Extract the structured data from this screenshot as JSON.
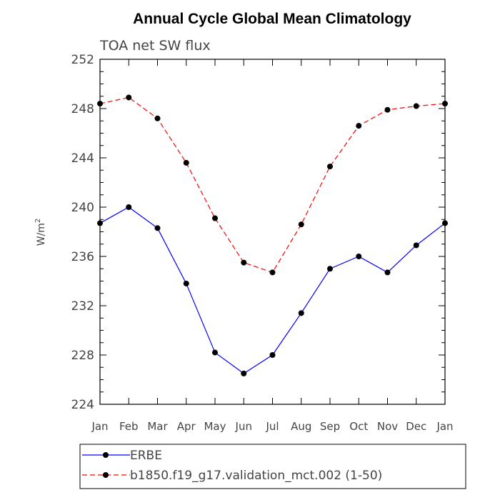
{
  "chart_data": {
    "type": "line",
    "title": "Annual Cycle Global Mean Climatology",
    "subtitle": "TOA net SW flux",
    "ylabel": "W/m",
    "ylabel_superscript": "2",
    "categories": [
      "Jan",
      "Feb",
      "Mar",
      "Apr",
      "May",
      "Jun",
      "Jul",
      "Aug",
      "Sep",
      "Oct",
      "Nov",
      "Dec",
      "Jan"
    ],
    "ylim": [
      224,
      252
    ],
    "yticks": [
      224,
      228,
      232,
      236,
      240,
      244,
      248,
      252
    ],
    "series": [
      {
        "name": "ERBE",
        "color": "#0000ff",
        "dash": "solid",
        "values": [
          238.7,
          240.0,
          238.3,
          233.8,
          228.2,
          226.5,
          228.0,
          231.4,
          235.0,
          236.0,
          234.7,
          236.9,
          238.7
        ]
      },
      {
        "name": "b1850.f19_g17.validation_mct.002 (1-50)",
        "color": "#ff0000",
        "dash": "dashed",
        "values": [
          248.4,
          248.9,
          247.2,
          243.6,
          239.1,
          235.5,
          234.7,
          238.6,
          243.3,
          246.6,
          247.9,
          248.2,
          248.4
        ]
      }
    ],
    "grid": false,
    "legend_position": "bottom"
  }
}
